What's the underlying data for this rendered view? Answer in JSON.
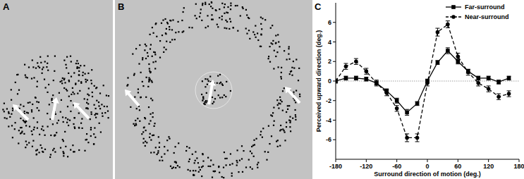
{
  "panel_labels": [
    "A",
    "B",
    "C"
  ],
  "chart_data": {
    "type": "line",
    "x_label": "Surround direction of motion (deg.)",
    "y_label": "Perceived upward direction (deg.)",
    "x": [
      -180,
      -160,
      -140,
      -120,
      -100,
      -80,
      -60,
      -40,
      -20,
      0,
      20,
      40,
      60,
      80,
      100,
      120,
      140,
      160
    ],
    "series": [
      {
        "name": "Far-surround",
        "color": "#000000",
        "marker": "square",
        "line_style": "solid",
        "values": [
          0,
          0.3,
          0.3,
          0.2,
          -0.2,
          -1.0,
          -2.0,
          -3.2,
          -2.3,
          0,
          1.9,
          3.1,
          2.0,
          1.0,
          0.3,
          0.3,
          -0.1,
          0.3
        ],
        "errors": [
          0.2,
          0.2,
          0.2,
          0.2,
          0.2,
          0.2,
          0.25,
          0.3,
          0.2,
          0.2,
          0.2,
          0.3,
          0.25,
          0.2,
          0.2,
          0.2,
          0.2,
          0.2
        ]
      },
      {
        "name": "Near-surround",
        "color": "#000000",
        "marker": "circle",
        "line_style": "dashed",
        "values": [
          0,
          1.5,
          2.0,
          1.0,
          -0.2,
          -1.2,
          -2.8,
          -5.8,
          -5.8,
          -0.2,
          5.0,
          5.8,
          2.5,
          0.9,
          -0.2,
          -0.8,
          -1.6,
          -1.3
        ],
        "errors": [
          0.2,
          0.3,
          0.3,
          0.3,
          0.3,
          0.3,
          0.3,
          0.4,
          0.4,
          0.3,
          0.4,
          0.35,
          0.35,
          0.3,
          0.3,
          0.3,
          0.3,
          0.3
        ]
      }
    ],
    "reference_lines": [
      0
    ],
    "xlim": [
      -180,
      180
    ],
    "xticks": [
      -180,
      -120,
      -60,
      0,
      60,
      120,
      180
    ],
    "ylim": [
      -8,
      8
    ],
    "yticks": [
      -6,
      -4,
      -2,
      0,
      2,
      4,
      6
    ],
    "legend": "top-right",
    "grid": false
  }
}
